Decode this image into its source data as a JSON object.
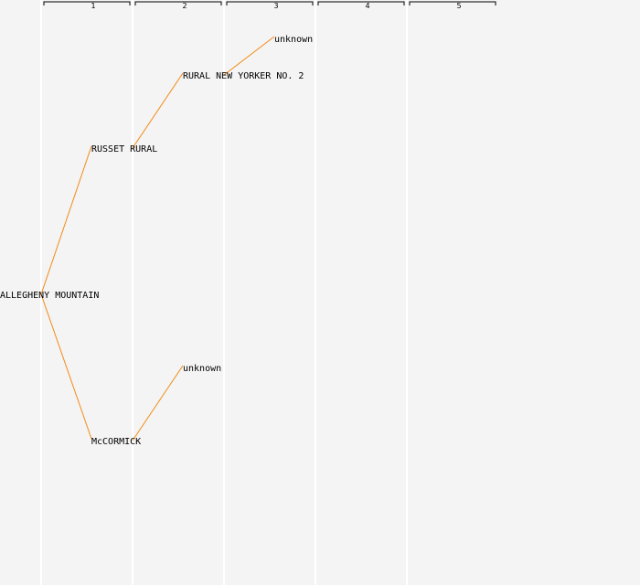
{
  "generations": [
    "1",
    "2",
    "3",
    "4",
    "5"
  ],
  "tree": {
    "root": "ALLEGHENY MOUNTAIN",
    "nodes": [
      {
        "id": "n0",
        "label": "ALLEGHENY MOUNTAIN",
        "gen": 1,
        "parent": null
      },
      {
        "id": "n1",
        "label": "RUSSET RURAL",
        "gen": 2,
        "parent": "n0"
      },
      {
        "id": "n2",
        "label": "McCORMICK",
        "gen": 2,
        "parent": "n0"
      },
      {
        "id": "n3",
        "label": "RURAL NEW YORKER NO. 2",
        "gen": 3,
        "parent": "n1"
      },
      {
        "id": "n4",
        "label": "unknown",
        "gen": 3,
        "parent": "n2"
      },
      {
        "id": "n5",
        "label": "unknown",
        "gen": 4,
        "parent": "n3"
      }
    ]
  },
  "colors": {
    "background": "#f4f4f4",
    "link": "#f28a14",
    "generation_line": "#ffffff",
    "text": "#000000"
  }
}
